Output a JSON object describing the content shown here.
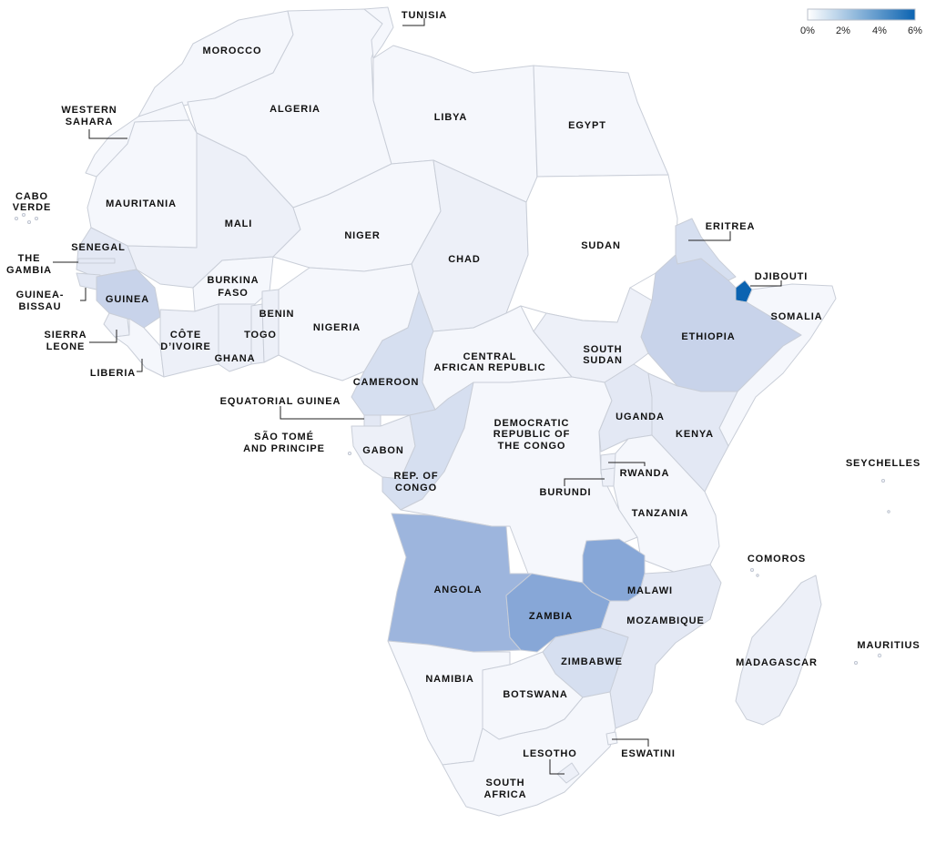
{
  "colors": {
    "c0": "#f5f7fc",
    "c1": "#edf0f8",
    "c2": "#e3e8f4",
    "c3": "#d6dff0",
    "c4": "#c8d3ea",
    "c5": "#9db5dd",
    "c6": "#87a7d7",
    "c7": "#0b63b1",
    "sudan": "#ffffff",
    "border": "#c9ced8"
  },
  "legend": {
    "ticks": [
      "0%",
      "2%",
      "4%",
      "6%"
    ],
    "color_start": "#ffffff",
    "color_end": "#0b63b1"
  },
  "countries": {
    "morocco": {
      "label": "MOROCCO",
      "shade": "c0"
    },
    "western_sahara": {
      "label1": "WESTERN",
      "label2": "SAHARA",
      "shade": "c0"
    },
    "algeria": {
      "label": "ALGERIA",
      "shade": "c0"
    },
    "tunisia": {
      "label": "TUNISIA",
      "shade": "c0"
    },
    "libya": {
      "label": "LIBYA",
      "shade": "c0"
    },
    "egypt": {
      "label": "EGYPT",
      "shade": "c0"
    },
    "mauritania": {
      "label": "MAURITANIA",
      "shade": "c0"
    },
    "mali": {
      "label": "MALI",
      "shade": "c1"
    },
    "niger": {
      "label": "NIGER",
      "shade": "c0"
    },
    "chad": {
      "label": "CHAD",
      "shade": "c1"
    },
    "sudan": {
      "label": "SUDAN",
      "shade": "sudan"
    },
    "eritrea": {
      "label": "ERITREA",
      "shade": "c3"
    },
    "djibouti": {
      "label": "DJIBOUTI",
      "shade": "c7"
    },
    "somalia": {
      "label": "SOMALIA",
      "shade": "c0"
    },
    "ethiopia": {
      "label": "ETHIOPIA",
      "shade": "c4"
    },
    "south_sudan": {
      "label1": "SOUTH",
      "label2": "SUDAN",
      "shade": "c1"
    },
    "cape_verde": {
      "label1": "CABO",
      "label2": "VERDE"
    },
    "senegal": {
      "label": "SENEGAL",
      "shade": "c2"
    },
    "gambia": {
      "label1": "THE",
      "label2": "GAMBIA"
    },
    "guinea_bissau": {
      "label1": "GUINEA-",
      "label2": "BISSAU"
    },
    "guinea": {
      "label": "GUINEA",
      "shade": "c4"
    },
    "sierra_leone": {
      "label1": "SIERRA",
      "label2": "LEONE",
      "shade": "c1"
    },
    "liberia": {
      "label": "LIBERIA",
      "shade": "c0"
    },
    "burkina_faso": {
      "label1": "BURKINA",
      "label2": "FASO",
      "shade": "c0"
    },
    "cote_divoire": {
      "label1": "CÔTE",
      "label2": "D’IVOIRE",
      "shade": "c1"
    },
    "ghana": {
      "label": "GHANA",
      "shade": "c1"
    },
    "togo": {
      "label": "TOGO",
      "shade": "c1"
    },
    "benin": {
      "label": "BENIN",
      "shade": "c1"
    },
    "nigeria": {
      "label": "NIGERIA",
      "shade": "c0"
    },
    "cameroon": {
      "label": "CAMEROON",
      "shade": "c3"
    },
    "car": {
      "label1": "CENTRAL",
      "label2": "AFRICAN REPUBLIC",
      "shade": "c0"
    },
    "equatorial_guinea": {
      "label": "EQUATORIAL GUINEA",
      "shade": "c2"
    },
    "sao_tome": {
      "label1": "SÃO TOMÉ",
      "label2": "AND PRINCIPE"
    },
    "gabon": {
      "label": "GABON",
      "shade": "c1"
    },
    "rep_congo": {
      "label1": "REP. OF",
      "label2": "CONGO",
      "shade": "c3"
    },
    "drc": {
      "label1": "DEMOCRATIC",
      "label2": "REPUBLIC OF",
      "label3": "THE CONGO",
      "shade": "c0"
    },
    "uganda": {
      "label": "UGANDA",
      "shade": "c2"
    },
    "kenya": {
      "label": "KENYA",
      "shade": "c2"
    },
    "rwanda": {
      "label": "RWANDA",
      "shade": "c1"
    },
    "burundi": {
      "label": "BURUNDI",
      "shade": "c1"
    },
    "tanzania": {
      "label": "TANZANIA",
      "shade": "c0"
    },
    "angola": {
      "label": "ANGOLA",
      "shade": "c5"
    },
    "zambia": {
      "label": "ZAMBIA",
      "shade": "c6"
    },
    "malawi": {
      "label": "MALAWI",
      "shade": "c6"
    },
    "mozambique": {
      "label": "MOZAMBIQUE",
      "shade": "c2"
    },
    "zimbabwe": {
      "label": "ZIMBABWE",
      "shade": "c3"
    },
    "namibia": {
      "label": "NAMIBIA",
      "shade": "c0"
    },
    "botswana": {
      "label": "BOTSWANA",
      "shade": "c0"
    },
    "south_africa": {
      "label1": "SOUTH",
      "label2": "AFRICA",
      "shade": "c0"
    },
    "lesotho": {
      "label": "LESOTHO",
      "shade": "c1"
    },
    "eswatini": {
      "label": "ESWATINI",
      "shade": "c0"
    },
    "madagascar": {
      "label": "MADAGASCAR",
      "shade": "c1"
    },
    "comoros": {
      "label": "COMOROS"
    },
    "seychelles": {
      "label": "SEYCHELLES"
    },
    "mauritius": {
      "label": "MAURITIUS"
    }
  }
}
